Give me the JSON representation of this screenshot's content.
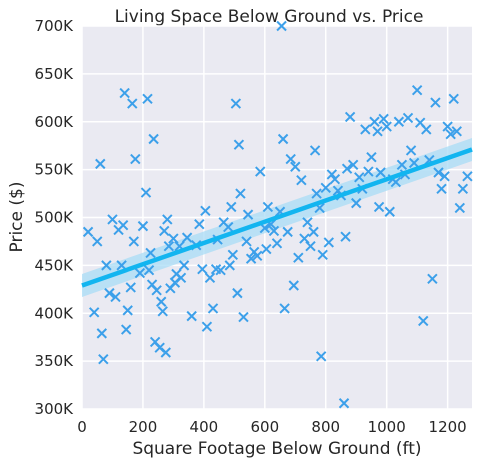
{
  "chart_data": {
    "type": "scatter",
    "title": "Living Space Below Ground vs. Price",
    "xlabel": "Square Footage Below Ground (ft)",
    "ylabel": "Price ($)",
    "xlim": [
      0,
      1280
    ],
    "ylim": [
      300000,
      700000
    ],
    "xticks": [
      {
        "value": 0,
        "label": "0"
      },
      {
        "value": 200,
        "label": "200"
      },
      {
        "value": 400,
        "label": "400"
      },
      {
        "value": 600,
        "label": "600"
      },
      {
        "value": 800,
        "label": "800"
      },
      {
        "value": 1000,
        "label": "1000"
      },
      {
        "value": 1200,
        "label": "1200"
      }
    ],
    "yticks": [
      {
        "value": 300000,
        "label": "300K"
      },
      {
        "value": 350000,
        "label": "350K"
      },
      {
        "value": 400000,
        "label": "400K"
      },
      {
        "value": 450000,
        "label": "450K"
      },
      {
        "value": 500000,
        "label": "500K"
      },
      {
        "value": 550000,
        "label": "550K"
      },
      {
        "value": 600000,
        "label": "600K"
      },
      {
        "value": 650000,
        "label": "650K"
      },
      {
        "value": 700000,
        "label": "700K"
      }
    ],
    "grid": true,
    "colors": {
      "background": "#eaeaf2",
      "grid": "#ffffff",
      "marker": "#3ca0ea",
      "regression_line": "#12b5f0",
      "confidence_band": "#a8dcf5"
    },
    "marker": "x",
    "regression": {
      "x": [
        0,
        1280
      ],
      "y": [
        429000,
        571000
      ],
      "ci_lower": [
        417000,
        559000
      ],
      "ci_upper": [
        441000,
        583000
      ]
    },
    "points": [
      [
        20,
        485
      ],
      [
        40,
        401
      ],
      [
        50,
        475
      ],
      [
        60,
        556
      ],
      [
        65,
        379
      ],
      [
        70,
        352
      ],
      [
        80,
        450
      ],
      [
        90,
        421
      ],
      [
        100,
        498
      ],
      [
        110,
        417
      ],
      [
        120,
        487
      ],
      [
        130,
        450
      ],
      [
        135,
        492
      ],
      [
        140,
        630
      ],
      [
        145,
        383
      ],
      [
        150,
        403
      ],
      [
        160,
        427
      ],
      [
        165,
        619
      ],
      [
        170,
        475
      ],
      [
        175,
        561
      ],
      [
        190,
        442
      ],
      [
        200,
        491
      ],
      [
        210,
        526
      ],
      [
        215,
        624
      ],
      [
        220,
        445
      ],
      [
        225,
        463
      ],
      [
        230,
        430
      ],
      [
        235,
        582
      ],
      [
        240,
        370
      ],
      [
        245,
        424
      ],
      [
        255,
        364
      ],
      [
        260,
        412
      ],
      [
        265,
        402
      ],
      [
        270,
        486
      ],
      [
        275,
        359
      ],
      [
        280,
        498
      ],
      [
        285,
        470
      ],
      [
        290,
        426
      ],
      [
        300,
        478
      ],
      [
        305,
        432
      ],
      [
        310,
        441
      ],
      [
        320,
        470
      ],
      [
        325,
        437
      ],
      [
        335,
        450
      ],
      [
        345,
        479
      ],
      [
        360,
        397
      ],
      [
        375,
        471
      ],
      [
        385,
        493
      ],
      [
        395,
        446
      ],
      [
        405,
        507
      ],
      [
        410,
        386
      ],
      [
        420,
        437
      ],
      [
        430,
        405
      ],
      [
        440,
        446
      ],
      [
        445,
        477
      ],
      [
        455,
        445
      ],
      [
        465,
        495
      ],
      [
        480,
        490
      ],
      [
        485,
        450
      ],
      [
        490,
        511
      ],
      [
        495,
        461
      ],
      [
        505,
        619
      ],
      [
        510,
        421
      ],
      [
        515,
        576
      ],
      [
        520,
        525
      ],
      [
        530,
        396
      ],
      [
        540,
        475
      ],
      [
        545,
        503
      ],
      [
        555,
        457
      ],
      [
        565,
        464
      ],
      [
        575,
        460
      ],
      [
        585,
        548
      ],
      [
        600,
        489
      ],
      [
        605,
        467
      ],
      [
        610,
        511
      ],
      [
        620,
        493
      ],
      [
        630,
        486
      ],
      [
        640,
        473
      ],
      [
        650,
        506
      ],
      [
        655,
        700
      ],
      [
        660,
        582
      ],
      [
        665,
        405
      ],
      [
        675,
        485
      ],
      [
        685,
        561
      ],
      [
        695,
        429
      ],
      [
        700,
        553
      ],
      [
        710,
        458
      ],
      [
        720,
        539
      ],
      [
        730,
        478
      ],
      [
        740,
        495
      ],
      [
        750,
        470
      ],
      [
        760,
        485
      ],
      [
        765,
        570
      ],
      [
        770,
        525
      ],
      [
        780,
        510
      ],
      [
        785,
        355
      ],
      [
        790,
        461
      ],
      [
        800,
        531
      ],
      [
        810,
        474
      ],
      [
        820,
        545
      ],
      [
        830,
        540
      ],
      [
        840,
        528
      ],
      [
        850,
        523
      ],
      [
        860,
        306
      ],
      [
        865,
        480
      ],
      [
        870,
        551
      ],
      [
        880,
        605
      ],
      [
        890,
        555
      ],
      [
        900,
        515
      ],
      [
        910,
        542
      ],
      [
        920,
        530
      ],
      [
        930,
        592
      ],
      [
        940,
        548
      ],
      [
        950,
        563
      ],
      [
        960,
        600
      ],
      [
        970,
        590
      ],
      [
        975,
        511
      ],
      [
        980,
        547
      ],
      [
        990,
        603
      ],
      [
        1000,
        595
      ],
      [
        1010,
        506
      ],
      [
        1020,
        540
      ],
      [
        1030,
        537
      ],
      [
        1040,
        600
      ],
      [
        1050,
        555
      ],
      [
        1060,
        545
      ],
      [
        1070,
        604
      ],
      [
        1080,
        570
      ],
      [
        1090,
        557
      ],
      [
        1100,
        633
      ],
      [
        1110,
        599
      ],
      [
        1120,
        392
      ],
      [
        1130,
        592
      ],
      [
        1140,
        560
      ],
      [
        1150,
        436
      ],
      [
        1160,
        620
      ],
      [
        1170,
        547
      ],
      [
        1180,
        530
      ],
      [
        1190,
        543
      ],
      [
        1200,
        595
      ],
      [
        1210,
        587
      ],
      [
        1220,
        624
      ],
      [
        1230,
        590
      ],
      [
        1240,
        510
      ],
      [
        1250,
        530
      ],
      [
        1265,
        543
      ]
    ]
  }
}
